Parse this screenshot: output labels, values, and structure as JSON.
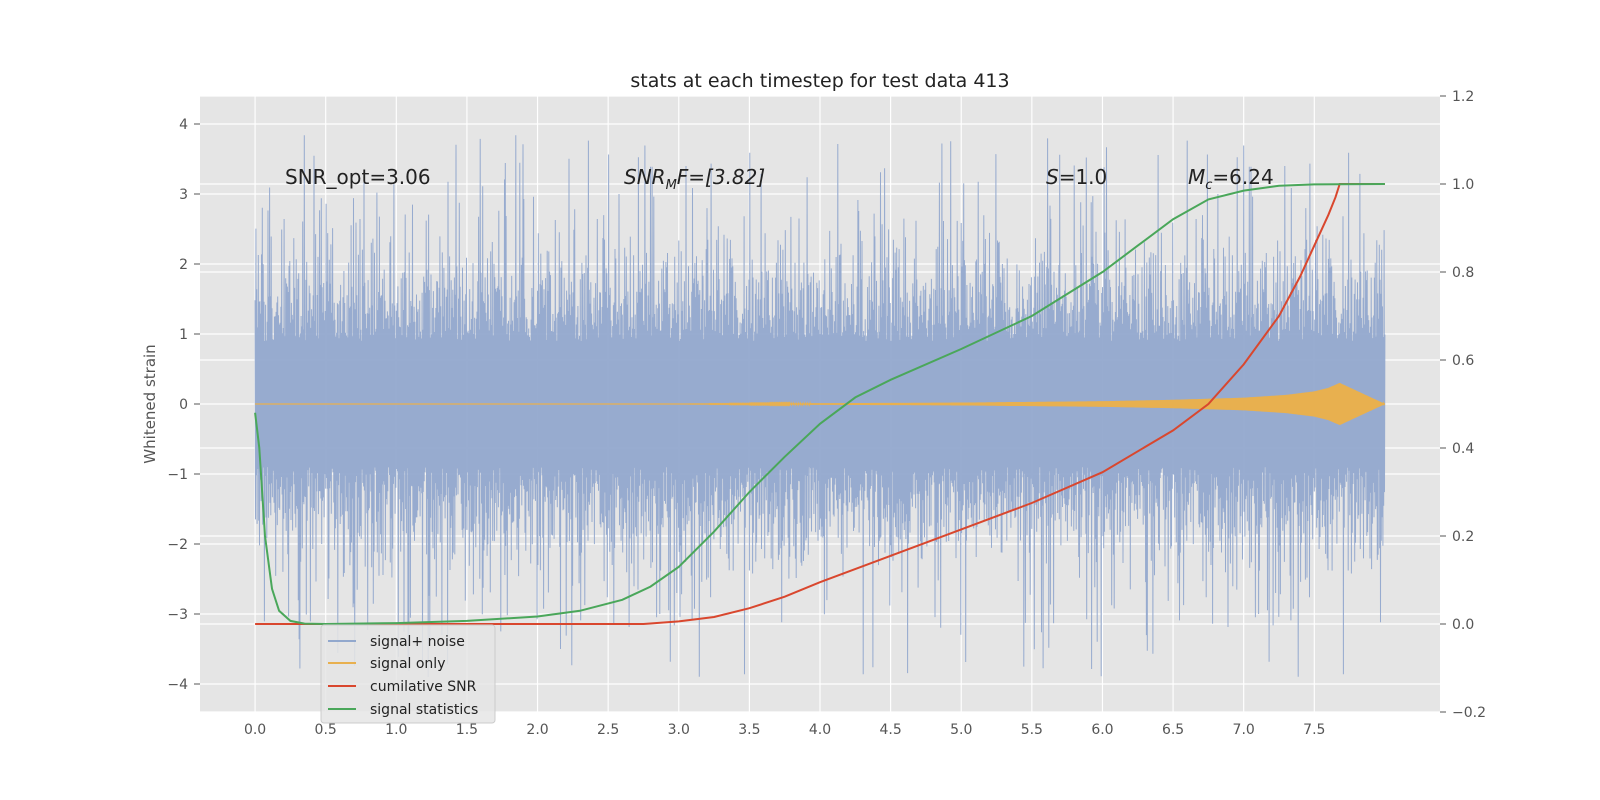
{
  "chart_data": {
    "type": "line",
    "title": "stats at each timestep for test data 413",
    "xlabel": "",
    "ylabel": "Whitened strain",
    "y2label": "",
    "xlim": [
      -0.39,
      8.39
    ],
    "ylim": [
      -4.4,
      4.4
    ],
    "y2lim": [
      -0.2,
      1.2
    ],
    "x_ticks": [
      "0.0",
      "0.5",
      "1.0",
      "1.5",
      "2.0",
      "2.5",
      "3.0",
      "3.5",
      "4.0",
      "4.5",
      "5.0",
      "5.5",
      "6.0",
      "6.5",
      "7.0",
      "7.5"
    ],
    "y_ticks": [
      "4",
      "3",
      "2",
      "1",
      "0",
      "−1",
      "−2",
      "−3",
      "−4"
    ],
    "y2_ticks": [
      "1.2",
      "1.0",
      "0.8",
      "0.6",
      "0.4",
      "0.2",
      "0.0",
      "−0.2"
    ],
    "grid": true,
    "legend_position": "lower-left",
    "annotations": {
      "snr_opt": "SNR_opt=3.06",
      "snr_mf_main": "SNR",
      "snr_mf_sub": "M",
      "snr_mf_tail": "F=[3.82]",
      "s_main": "S",
      "s_tail": "=1.0",
      "mc_main": "M",
      "mc_sub": "c",
      "mc_tail": "=6.24"
    },
    "series": [
      {
        "name": "signal+ noise",
        "color": "#92a8cd",
        "axis": "left",
        "style": "dense noise, approx. |y| up to 3-4",
        "x": [
          0.0,
          8.0
        ],
        "envelope_upper": 3.0,
        "envelope_lower": -3.0
      },
      {
        "name": "signal only",
        "color": "#e8b04f",
        "axis": "left",
        "x": [
          0.0,
          2.0,
          3.0,
          4.0,
          5.0,
          6.0,
          6.5,
          7.0,
          7.3,
          7.5,
          7.6,
          7.68,
          8.0
        ],
        "amplitude": [
          0.0,
          0.0,
          0.0,
          0.01,
          0.02,
          0.04,
          0.06,
          0.09,
          0.13,
          0.18,
          0.23,
          0.3,
          0.0
        ]
      },
      {
        "name": "cumilative SNR",
        "color": "#d9472e",
        "axis": "right",
        "x": [
          0.0,
          0.5,
          1.0,
          1.5,
          2.0,
          2.5,
          2.75,
          3.0,
          3.25,
          3.5,
          3.75,
          4.0,
          4.5,
          5.0,
          5.5,
          6.0,
          6.5,
          6.75,
          7.0,
          7.25,
          7.4,
          7.5,
          7.6,
          7.65,
          7.68,
          7.7,
          8.0
        ],
        "values": [
          0.0,
          0.0,
          0.0,
          0.0,
          0.0,
          0.0,
          0.0,
          0.006,
          0.016,
          0.036,
          0.062,
          0.095,
          0.155,
          0.215,
          0.275,
          0.345,
          0.44,
          0.5,
          0.59,
          0.7,
          0.79,
          0.86,
          0.93,
          0.97,
          1.0,
          1.0,
          1.0
        ]
      },
      {
        "name": "signal statistics",
        "color": "#4aa75a",
        "axis": "right",
        "x": [
          0.0,
          0.03,
          0.07,
          0.12,
          0.17,
          0.25,
          0.35,
          0.5,
          1.0,
          1.5,
          2.0,
          2.3,
          2.6,
          2.8,
          3.0,
          3.25,
          3.5,
          3.75,
          4.0,
          4.25,
          4.5,
          5.0,
          5.5,
          6.0,
          6.25,
          6.5,
          6.75,
          7.0,
          7.25,
          7.5,
          8.0
        ],
        "values": [
          0.48,
          0.4,
          0.2,
          0.08,
          0.03,
          0.007,
          0.001,
          0.0,
          0.002,
          0.007,
          0.017,
          0.03,
          0.055,
          0.085,
          0.13,
          0.21,
          0.3,
          0.38,
          0.455,
          0.515,
          0.555,
          0.625,
          0.7,
          0.8,
          0.86,
          0.92,
          0.965,
          0.985,
          0.996,
          0.999,
          1.0
        ]
      }
    ]
  }
}
